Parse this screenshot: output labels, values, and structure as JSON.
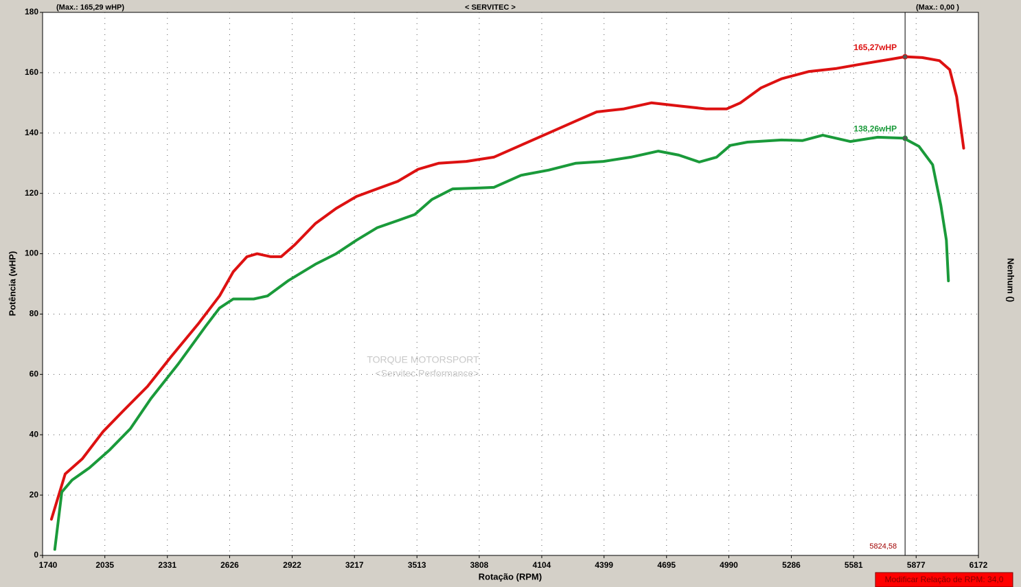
{
  "chart_data": {
    "type": "line",
    "header_left": "(Max.: 165,29 wHP)",
    "title": "< SERVITEC >",
    "header_right": "(Max.: 0,00 )",
    "x_label": "Rotação (RPM)",
    "y_label": "Potência (wHP)",
    "y2_label": "Nenhum ()",
    "watermark": [
      "TORQUE MOTORSPORT",
      "<Servitec Performance>"
    ],
    "status_text": "Modificar Relação de RPM: 34,0",
    "xlim": [
      1740,
      6172
    ],
    "ylim": [
      0,
      180
    ],
    "xticks": [
      1740,
      2035,
      2331,
      2626,
      2922,
      3217,
      3513,
      3808,
      4104,
      4399,
      4695,
      4990,
      5286,
      5581,
      5877,
      6172
    ],
    "yticks": [
      0,
      20,
      40,
      60,
      80,
      100,
      120,
      140,
      160,
      180
    ],
    "grid": true,
    "cursor": {
      "value": 5824.58,
      "label": "5824,58"
    },
    "series": [
      {
        "color": "#dd1111",
        "x": [
          1782,
          1847,
          1928,
          2026,
          2123,
          2237,
          2350,
          2480,
          2578,
          2643,
          2708,
          2756,
          2821,
          2870,
          2935,
          3032,
          3130,
          3227,
          3324,
          3422,
          3519,
          3617,
          3747,
          3877,
          4006,
          4136,
          4266,
          4364,
          4493,
          4623,
          4753,
          4883,
          4980,
          5045,
          5143,
          5240,
          5370,
          5500,
          5630,
          5760,
          5825,
          5906,
          5987,
          6036,
          6069,
          6102
        ],
        "values": [
          12,
          27,
          32,
          41,
          48,
          56,
          66,
          77,
          86,
          94,
          99,
          100,
          99,
          99,
          103,
          110,
          115,
          119,
          121.5,
          124,
          128,
          130,
          130.6,
          132,
          136,
          140,
          144,
          147,
          148,
          150,
          149,
          148,
          148,
          150,
          155,
          158,
          160.4,
          161.4,
          163,
          164.5,
          165.3,
          165,
          164,
          161,
          152,
          135
        ],
        "marker": {
          "value": 165.27,
          "label": "165,27wHP"
        }
      },
      {
        "color": "#1a9a3a",
        "x": [
          1798,
          1831,
          1880,
          1961,
          2058,
          2156,
          2253,
          2383,
          2513,
          2578,
          2643,
          2740,
          2805,
          2902,
          3032,
          3130,
          3227,
          3324,
          3422,
          3503,
          3584,
          3682,
          3812,
          3877,
          4006,
          4136,
          4266,
          4396,
          4526,
          4656,
          4753,
          4850,
          4932,
          4997,
          5078,
          5240,
          5338,
          5435,
          5565,
          5695,
          5818,
          5890,
          5955,
          5994,
          6020,
          6030
        ],
        "values": [
          2,
          21,
          25,
          29,
          35,
          42,
          52,
          63.5,
          76,
          82,
          85,
          85,
          86,
          91,
          96.5,
          100,
          104.5,
          108.6,
          111,
          113,
          118,
          121.5,
          121.8,
          122,
          126,
          127.7,
          130,
          130.6,
          132,
          134,
          132.7,
          130.4,
          132,
          135.9,
          137,
          137.7,
          137.5,
          139.3,
          137.2,
          138.6,
          138.3,
          135.6,
          129.5,
          116,
          104.5,
          91
        ],
        "marker": {
          "value": 138.26,
          "label": "138,26wHP"
        }
      }
    ]
  }
}
